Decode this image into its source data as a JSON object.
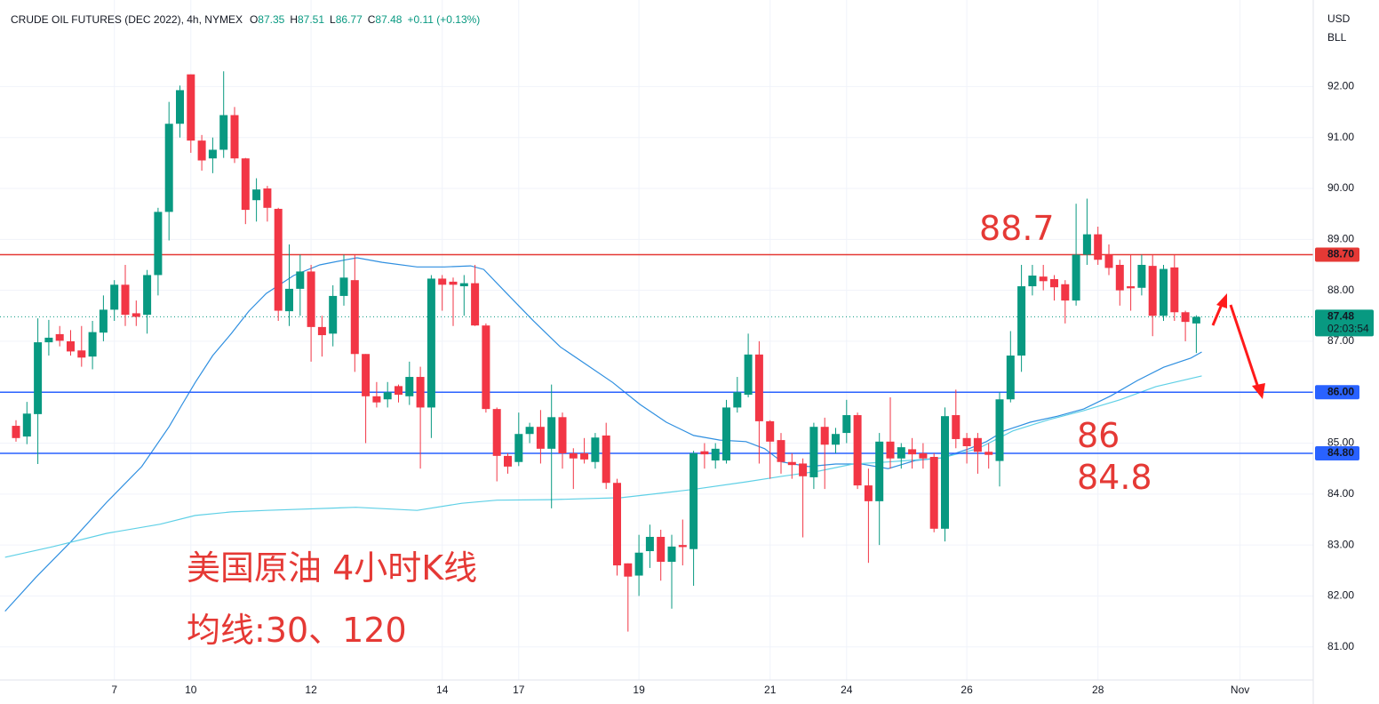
{
  "chart_data": {
    "type": "candlestick",
    "title": "CRUDE OIL FUTURES (DEC 2022), 4h, NYMEX",
    "ohlc_legend": [
      {
        "key": "O",
        "value": "87.35"
      },
      {
        "key": "H",
        "value": "87.51"
      },
      {
        "key": "L",
        "value": "86.77"
      },
      {
        "key": "C",
        "value": "87.48"
      }
    ],
    "change": "+0.11 (+0.13%)",
    "currency": "USD",
    "unit": "BLL",
    "up_color": "#089981",
    "down_color": "#f23645",
    "grid": true,
    "categories": [
      null,
      null,
      null,
      null,
      null,
      null,
      null,
      null,
      null,
      "7",
      null,
      null,
      null,
      null,
      null,
      null,
      "10",
      null,
      null,
      null,
      null,
      null,
      null,
      null,
      null,
      null,
      null,
      "12",
      null,
      null,
      null,
      null,
      null,
      null,
      null,
      null,
      null,
      null,
      null,
      "14",
      null,
      null,
      null,
      null,
      null,
      null,
      "17",
      null,
      null,
      null,
      null,
      null,
      null,
      null,
      null,
      null,
      null,
      "19",
      null,
      null,
      null,
      null,
      null,
      null,
      null,
      null,
      null,
      null,
      null,
      "21",
      null,
      null,
      null,
      null,
      null,
      null,
      "24",
      null,
      null,
      null,
      null,
      null,
      null,
      null,
      null,
      null,
      null,
      "26",
      null,
      null,
      null,
      null,
      null,
      null,
      null,
      null,
      null,
      null,
      null,
      "28",
      null,
      null,
      null,
      null,
      null,
      null,
      null,
      null,
      null,
      null,
      null,
      null,
      "Nov",
      null,
      null,
      null,
      null,
      null,
      null
    ],
    "open": [
      85.34,
      85.13,
      85.57,
      86.98,
      87.14,
      87.0,
      86.82,
      86.7,
      87.17,
      87.62,
      88.11,
      87.55,
      87.52,
      88.3,
      89.54,
      91.27,
      92.24,
      90.94,
      90.59,
      90.76,
      91.44,
      90.59,
      89.77,
      90.0,
      89.6,
      87.59,
      88.03,
      88.37,
      87.28,
      87.15,
      87.89,
      88.2,
      86.75,
      85.92,
      85.86,
      86.12,
      85.92,
      86.3,
      85.7,
      88.23,
      88.17,
      88.08,
      88.14,
      87.31,
      85.67,
      84.75,
      84.63,
      85.18,
      85.32,
      84.89,
      85.51,
      84.8,
      84.8,
      84.63,
      85.15,
      84.22,
      82.64,
      82.4,
      82.88,
      83.16,
      82.67,
      83.0,
      82.92,
      84.84,
      84.66,
      84.66,
      85.7,
      85.95,
      86.74,
      85.43,
      85.06,
      84.63,
      84.6,
      84.33,
      85.32,
      84.97,
      85.2,
      85.55,
      84.17,
      83.86,
      85.03,
      84.7,
      84.88,
      84.8,
      84.73,
      83.32,
      85.55,
      85.1,
      85.1,
      84.83,
      84.65,
      85.86,
      86.72,
      88.08,
      88.27,
      88.22,
      88.12,
      87.8,
      88.7,
      89.1,
      88.7,
      88.5,
      88.08,
      88.05,
      88.48,
      87.5,
      88.45,
      87.57,
      87.35,
      null,
      null,
      null,
      null,
      null,
      null,
      null,
      null,
      null,
      null
    ],
    "high": [
      85.45,
      85.81,
      87.45,
      87.42,
      87.3,
      87.22,
      87.3,
      87.4,
      87.9,
      88.2,
      88.5,
      87.8,
      88.4,
      89.62,
      91.7,
      92.02,
      92.24,
      91.05,
      91.0,
      92.3,
      91.6,
      90.6,
      90.2,
      90.05,
      89.62,
      88.9,
      88.7,
      88.5,
      87.5,
      88.1,
      88.7,
      88.7,
      86.75,
      86.2,
      86.2,
      86.15,
      86.6,
      86.5,
      88.3,
      88.3,
      88.25,
      88.3,
      88.5,
      87.35,
      85.7,
      84.8,
      85.6,
      85.4,
      85.65,
      86.15,
      85.6,
      84.9,
      85.1,
      85.2,
      85.4,
      84.3,
      82.64,
      83.2,
      83.4,
      83.3,
      83.2,
      83.5,
      84.85,
      85.0,
      85.0,
      85.85,
      86.3,
      87.15,
      87.0,
      85.45,
      85.2,
      84.8,
      84.7,
      85.4,
      85.5,
      85.3,
      85.85,
      85.6,
      84.5,
      85.2,
      85.9,
      85.0,
      85.1,
      85.0,
      84.8,
      85.7,
      86.05,
      85.2,
      85.2,
      85.0,
      86.0,
      87.2,
      88.5,
      88.5,
      88.5,
      88.3,
      88.2,
      89.7,
      89.8,
      89.25,
      88.9,
      88.6,
      88.7,
      88.7,
      88.7,
      88.5,
      88.7,
      87.6,
      87.51,
      null,
      null,
      null,
      null,
      null,
      null,
      null,
      null,
      null,
      null
    ],
    "low": [
      85.03,
      84.98,
      84.59,
      86.72,
      86.9,
      86.72,
      86.5,
      86.45,
      87.0,
      87.4,
      87.3,
      87.3,
      87.15,
      87.9,
      88.98,
      91.0,
      90.7,
      90.35,
      90.3,
      90.6,
      90.5,
      89.3,
      89.35,
      89.35,
      87.4,
      87.3,
      87.5,
      86.6,
      86.7,
      86.9,
      87.7,
      86.4,
      85.0,
      85.7,
      85.7,
      85.8,
      85.75,
      84.5,
      85.1,
      87.6,
      87.3,
      87.5,
      87.3,
      85.6,
      84.25,
      84.4,
      84.55,
      85.0,
      84.6,
      83.72,
      84.5,
      84.1,
      84.6,
      84.5,
      84.1,
      82.4,
      81.3,
      82.0,
      82.55,
      82.3,
      81.75,
      82.6,
      82.2,
      84.5,
      84.5,
      84.6,
      85.6,
      85.9,
      84.6,
      84.3,
      84.4,
      84.3,
      83.15,
      84.1,
      84.1,
      84.8,
      85.0,
      84.1,
      82.65,
      83.0,
      84.5,
      84.5,
      84.5,
      84.5,
      83.25,
      83.07,
      84.9,
      84.6,
      84.4,
      84.5,
      84.15,
      85.8,
      86.4,
      87.9,
      88.0,
      87.8,
      87.35,
      87.7,
      88.5,
      88.5,
      88.3,
      87.7,
      87.6,
      87.9,
      87.1,
      87.4,
      87.4,
      87.0,
      86.77,
      null,
      null,
      null,
      null,
      null,
      null,
      null,
      null,
      null,
      null
    ],
    "close": [
      85.1,
      85.58,
      86.98,
      87.07,
      87.01,
      86.8,
      86.68,
      87.18,
      87.62,
      88.11,
      87.52,
      87.48,
      88.3,
      89.54,
      91.27,
      91.93,
      90.94,
      90.55,
      90.76,
      91.44,
      90.59,
      89.58,
      89.98,
      89.62,
      87.6,
      88.03,
      88.37,
      87.28,
      87.12,
      87.89,
      88.25,
      86.75,
      85.92,
      85.8,
      86.0,
      85.95,
      86.3,
      85.7,
      88.23,
      88.11,
      88.11,
      88.14,
      87.31,
      85.67,
      84.75,
      84.54,
      85.18,
      85.32,
      84.89,
      85.51,
      84.8,
      84.7,
      84.68,
      85.11,
      84.22,
      82.6,
      82.38,
      82.85,
      83.16,
      82.67,
      82.97,
      82.96,
      84.8,
      84.78,
      84.89,
      85.7,
      86.0,
      86.74,
      85.43,
      85.03,
      84.63,
      84.57,
      84.35,
      85.32,
      84.97,
      85.18,
      85.55,
      84.17,
      83.86,
      85.03,
      84.7,
      84.92,
      84.78,
      84.7,
      83.32,
      85.53,
      85.08,
      84.94,
      84.83,
      84.77,
      85.86,
      86.72,
      88.08,
      88.29,
      88.18,
      88.06,
      87.8,
      88.7,
      89.1,
      88.6,
      88.44,
      88.0,
      88.04,
      88.5,
      87.5,
      88.42,
      87.57,
      87.38,
      87.48,
      null,
      null,
      null,
      null,
      null,
      null,
      null,
      null,
      null,
      null
    ],
    "ma_lines": [
      {
        "color": "#2f8fe0",
        "x": [
          -1.0,
          1.8,
          5.0,
          8.3,
          11.5,
          14.0,
          15.2,
          16.4,
          18.0,
          19.7,
          21.3,
          22.9,
          25.4,
          27.8,
          30.2,
          31.2,
          33.5,
          36.7,
          39.2,
          41.6,
          42.8,
          44.9,
          47.3,
          49.8,
          52.2,
          54.6,
          57.1,
          59.5,
          62.0,
          64.4,
          66.8,
          68.5,
          70.1,
          72.5,
          75.0,
          77.4,
          79.8,
          82.3,
          84.7,
          87.2,
          88.8,
          90.4,
          92.8,
          95.3,
          97.7,
          100.2,
          102.6,
          105.0,
          107.5,
          108.5
        ],
        "values": [
          81.7,
          82.36,
          83.06,
          83.84,
          84.54,
          85.32,
          85.76,
          86.19,
          86.72,
          87.15,
          87.59,
          87.94,
          88.29,
          88.5,
          88.6,
          88.64,
          88.55,
          88.46,
          88.46,
          88.48,
          88.41,
          87.94,
          87.41,
          86.89,
          86.54,
          86.19,
          85.76,
          85.41,
          85.15,
          85.06,
          85.03,
          84.89,
          84.63,
          84.54,
          84.59,
          84.59,
          84.5,
          84.66,
          84.71,
          84.89,
          85.03,
          85.24,
          85.41,
          85.53,
          85.67,
          85.93,
          86.23,
          86.49,
          86.67,
          86.79
        ]
      },
      {
        "color": "#5fd0e6",
        "x": [
          -1.0,
          3.4,
          8.3,
          13.2,
          16.4,
          19.7,
          22.9,
          31.1,
          36.7,
          40.8,
          44.0,
          48.9,
          55.4,
          61.9,
          66.8,
          70.1,
          73.4,
          76.6,
          79.8,
          84.7,
          88.0,
          91.2,
          94.5,
          97.7,
          101.0,
          104.3,
          108.5
        ],
        "values": [
          82.76,
          82.97,
          83.23,
          83.41,
          83.58,
          83.65,
          83.68,
          83.74,
          83.68,
          83.82,
          83.88,
          83.89,
          83.93,
          84.09,
          84.24,
          84.35,
          84.45,
          84.59,
          84.63,
          84.71,
          84.89,
          85.24,
          85.46,
          85.64,
          85.85,
          86.11,
          86.32
        ]
      }
    ],
    "levels": [
      {
        "value": 88.7,
        "label": "88.70",
        "color": "#e53935"
      },
      {
        "value": 86,
        "label": "86.00",
        "color": "#2962ff"
      },
      {
        "value": 84.8,
        "label": "84.80",
        "color": "#2962ff"
      }
    ],
    "last_price": {
      "value": 87.48,
      "label": "87.48",
      "countdown": "02:03:54",
      "color": "#089981"
    },
    "ylim": [
      80.35,
      93.7
    ],
    "yticks": [
      {
        "value": 81,
        "label": "81.00"
      },
      {
        "value": 82,
        "label": "82.00"
      },
      {
        "value": 83,
        "label": "83.00"
      },
      {
        "value": 84,
        "label": "84.00"
      },
      {
        "value": 85,
        "label": "85.00"
      },
      {
        "value": 86,
        "label": "86.00"
      },
      {
        "value": 87,
        "label": "87.00"
      },
      {
        "value": 88,
        "label": "88.00"
      },
      {
        "value": 89,
        "label": "89.00"
      },
      {
        "value": 90,
        "label": "90.00"
      },
      {
        "value": 91,
        "label": "91.00"
      },
      {
        "value": 92,
        "label": "92.00"
      }
    ],
    "annotations": [
      "88.7",
      "86",
      "84.8",
      "美国原油 4小时K线",
      "均线:30、120"
    ]
  }
}
